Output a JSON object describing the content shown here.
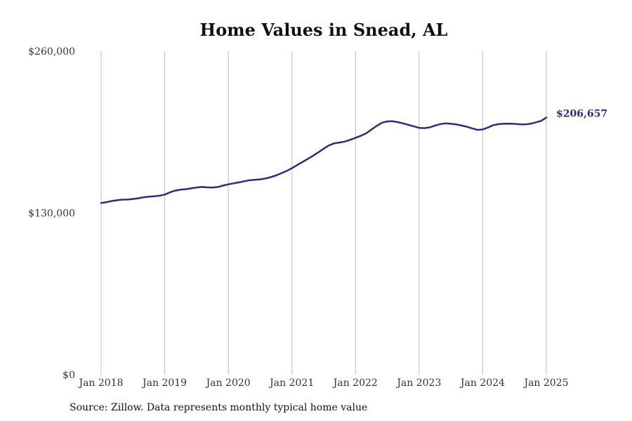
{
  "chart_data": {
    "type": "line",
    "title": "Home Values in Snead, AL",
    "xlabel": "",
    "ylabel": "",
    "ylim": [
      0,
      260000
    ],
    "y_ticks": [
      {
        "value": 0,
        "label": "$0"
      },
      {
        "value": 130000,
        "label": "$130,000"
      },
      {
        "value": 260000,
        "label": "$260,000"
      }
    ],
    "x_ticks": [
      {
        "value": 2018.0,
        "label": "Jan 2018"
      },
      {
        "value": 2019.0,
        "label": "Jan 2019"
      },
      {
        "value": 2020.0,
        "label": "Jan 2020"
      },
      {
        "value": 2021.0,
        "label": "Jan 2021"
      },
      {
        "value": 2022.0,
        "label": "Jan 2022"
      },
      {
        "value": 2023.0,
        "label": "Jan 2023"
      },
      {
        "value": 2024.0,
        "label": "Jan 2024"
      },
      {
        "value": 2025.0,
        "label": "Jan 2025"
      }
    ],
    "grid": "vertical",
    "line_color": "#2d2a87",
    "end_label": "$206,657",
    "series": [
      {
        "x": [
          2018.0,
          2018.083,
          2018.167,
          2018.25,
          2018.333,
          2018.417,
          2018.5,
          2018.583,
          2018.667,
          2018.75,
          2018.833,
          2018.917,
          2019.0,
          2019.083,
          2019.167,
          2019.25,
          2019.333,
          2019.417,
          2019.5,
          2019.583,
          2019.667,
          2019.75,
          2019.833,
          2019.917,
          2020.0,
          2020.083,
          2020.167,
          2020.25,
          2020.333,
          2020.417,
          2020.5,
          2020.583,
          2020.667,
          2020.75,
          2020.833,
          2020.917,
          2021.0,
          2021.083,
          2021.167,
          2021.25,
          2021.333,
          2021.417,
          2021.5,
          2021.583,
          2021.667,
          2021.75,
          2021.833,
          2021.917,
          2022.0,
          2022.083,
          2022.167,
          2022.25,
          2022.333,
          2022.417,
          2022.5,
          2022.583,
          2022.667,
          2022.75,
          2022.833,
          2022.917,
          2023.0,
          2023.083,
          2023.167,
          2023.25,
          2023.333,
          2023.417,
          2023.5,
          2023.583,
          2023.667,
          2023.75,
          2023.833,
          2023.917,
          2024.0,
          2024.083,
          2024.167,
          2024.25,
          2024.333,
          2024.417,
          2024.5,
          2024.583,
          2024.667,
          2024.75,
          2024.833,
          2024.917,
          2025.0
        ],
        "values": [
          138000,
          138700,
          139600,
          140200,
          140700,
          140800,
          141200,
          141800,
          142600,
          143100,
          143400,
          143900,
          144800,
          146600,
          148000,
          148700,
          149100,
          149800,
          150500,
          150900,
          150600,
          150500,
          150800,
          152000,
          153000,
          153800,
          154600,
          155500,
          156300,
          156600,
          157000,
          157700,
          158800,
          160200,
          161900,
          163800,
          166000,
          168500,
          171000,
          173500,
          176000,
          178800,
          181700,
          184300,
          186000,
          186600,
          187400,
          188800,
          190400,
          192000,
          194000,
          197000,
          200000,
          202600,
          203600,
          203700,
          203000,
          202000,
          200800,
          199600,
          198400,
          198200,
          198800,
          200300,
          201400,
          202000,
          201700,
          201200,
          200300,
          199300,
          198000,
          196800,
          197100,
          198700,
          200600,
          201400,
          201700,
          201800,
          201600,
          201300,
          201200,
          201700,
          202800,
          204000,
          206657
        ]
      }
    ]
  },
  "source": "Source: Zillow. Data represents monthly typical home value"
}
